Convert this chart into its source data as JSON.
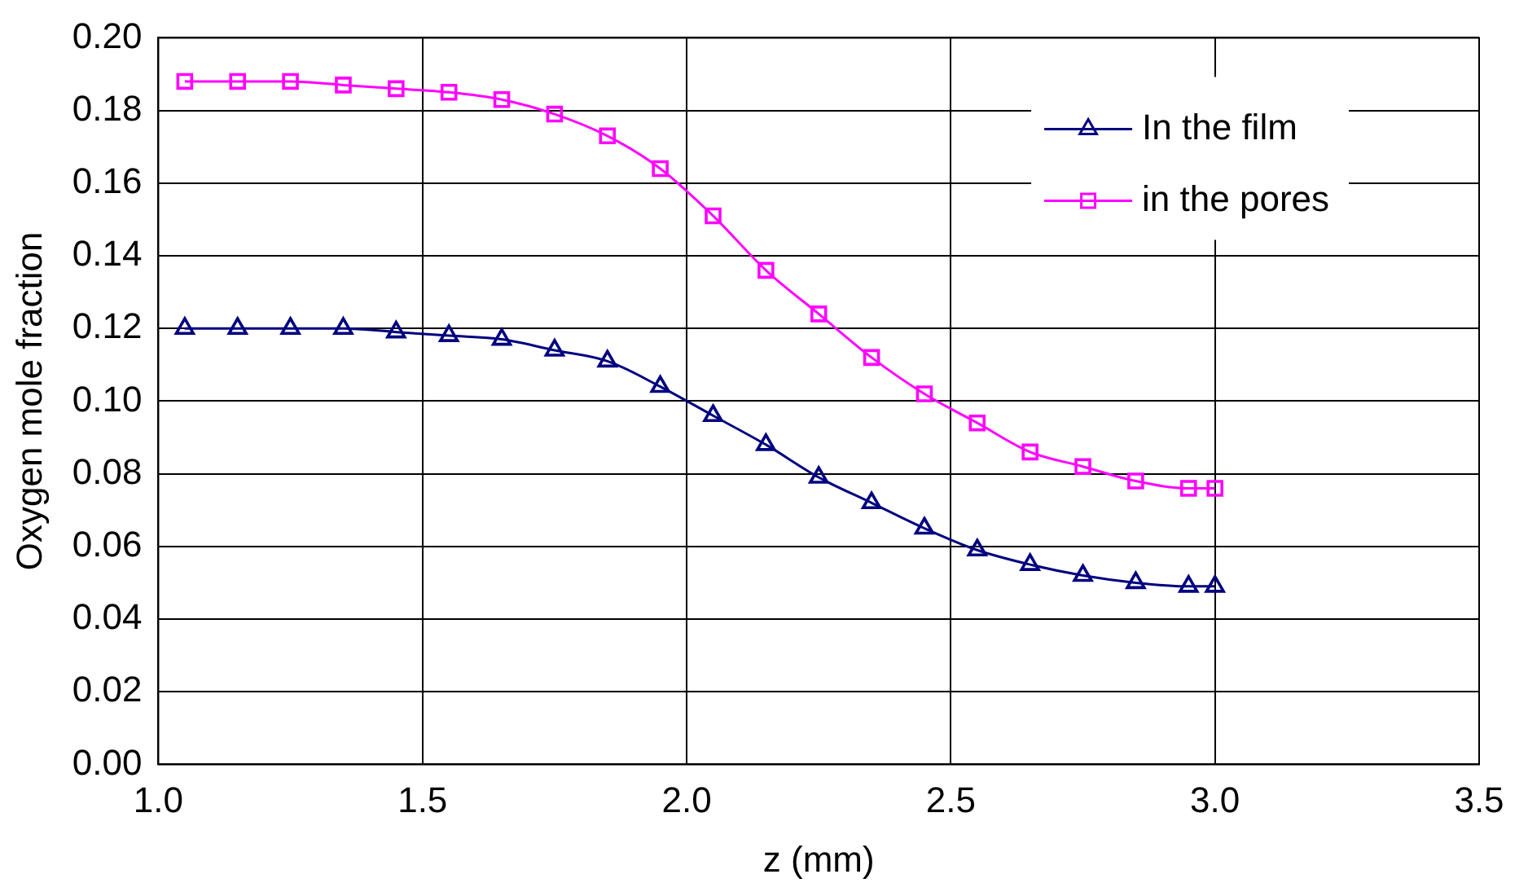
{
  "chart_data": {
    "type": "line",
    "xlabel": "z (mm)",
    "ylabel": "Oxygen mole fraction",
    "xlim": [
      1.0,
      3.5
    ],
    "xticks": [
      {
        "value": 1,
        "label": "1.0"
      },
      {
        "value": 1.5,
        "label": "1.5"
      },
      {
        "value": 2,
        "label": "2.0"
      },
      {
        "value": 2.5,
        "label": "2.5"
      },
      {
        "value": 3,
        "label": "3.0"
      },
      {
        "value": 3.5,
        "label": "3.5"
      }
    ],
    "ylim": [
      0,
      0.2
    ],
    "yticks": [
      {
        "value": 0,
        "label": "0.00"
      },
      {
        "value": 0.02,
        "label": "0.02"
      },
      {
        "value": 0.04,
        "label": "0.04"
      },
      {
        "value": 0.06,
        "label": "0.06"
      },
      {
        "value": 0.08,
        "label": "0.08"
      },
      {
        "value": 0.1,
        "label": "0.10"
      },
      {
        "value": 0.12,
        "label": "0.12"
      },
      {
        "value": 0.14,
        "label": "0.14"
      },
      {
        "value": 0.16,
        "label": "0.16"
      },
      {
        "value": 0.18,
        "label": "0.18"
      },
      {
        "value": 0.2,
        "label": "0.20"
      }
    ],
    "x": [
      1.05,
      1.15,
      1.25,
      1.35,
      1.45,
      1.55,
      1.65,
      1.75,
      1.85,
      1.95,
      2.05,
      2.15,
      2.25,
      2.35,
      2.45,
      2.55,
      2.65,
      2.75,
      2.85,
      2.95,
      3.0
    ],
    "grid": true,
    "legend": "top right",
    "series": [
      {
        "name": "In the film",
        "color": "#000080",
        "marker": "triangle",
        "values": [
          0.12,
          0.12,
          0.12,
          0.12,
          0.119,
          0.118,
          0.117,
          0.114,
          0.111,
          0.104,
          0.096,
          0.088,
          0.079,
          0.072,
          0.065,
          0.059,
          0.055,
          0.052,
          0.05,
          0.049,
          0.049
        ]
      },
      {
        "name": "in the pores",
        "color": "#ff00ff",
        "marker": "square",
        "values": [
          0.188,
          0.188,
          0.188,
          0.187,
          0.186,
          0.185,
          0.183,
          0.179,
          0.173,
          0.164,
          0.151,
          0.136,
          0.124,
          0.112,
          0.102,
          0.094,
          0.086,
          0.082,
          0.078,
          0.076,
          0.076
        ]
      }
    ]
  }
}
